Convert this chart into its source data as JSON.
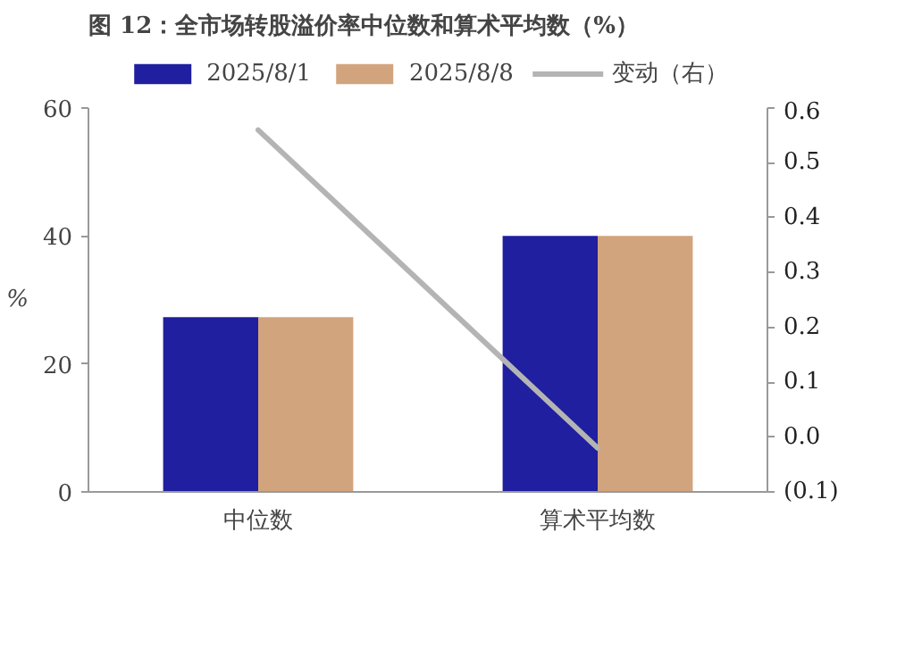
{
  "chart_data": {
    "type": "bar",
    "title": "图 12：全市场转股溢价率中位数和算术平均数（%）",
    "ylabel": "%",
    "categories": [
      "中位数",
      "算术平均数"
    ],
    "series": [
      {
        "name": "2025/8/1",
        "color": "#1f1f9f",
        "values": [
          27.3,
          40.0
        ]
      },
      {
        "name": "2025/8/8",
        "color": "#d2a47e",
        "values": [
          27.3,
          40.0
        ]
      },
      {
        "name": "变动（右）",
        "color": "#b4b4b4",
        "type": "line",
        "axis": "y2",
        "values": [
          0.56,
          -0.02
        ]
      }
    ],
    "ylim": [
      0,
      60
    ],
    "yticks": [
      0,
      20,
      40,
      60
    ],
    "y2lim": [
      -0.1,
      0.6
    ],
    "y2ticks": [
      {
        "value": -0.1,
        "label": "(0.1)"
      },
      {
        "value": 0.0,
        "label": "0.0"
      },
      0.1,
      0.2,
      0.3,
      0.4,
      0.5,
      0.6
    ],
    "grid": false,
    "legend": "top",
    "marker": "none"
  }
}
